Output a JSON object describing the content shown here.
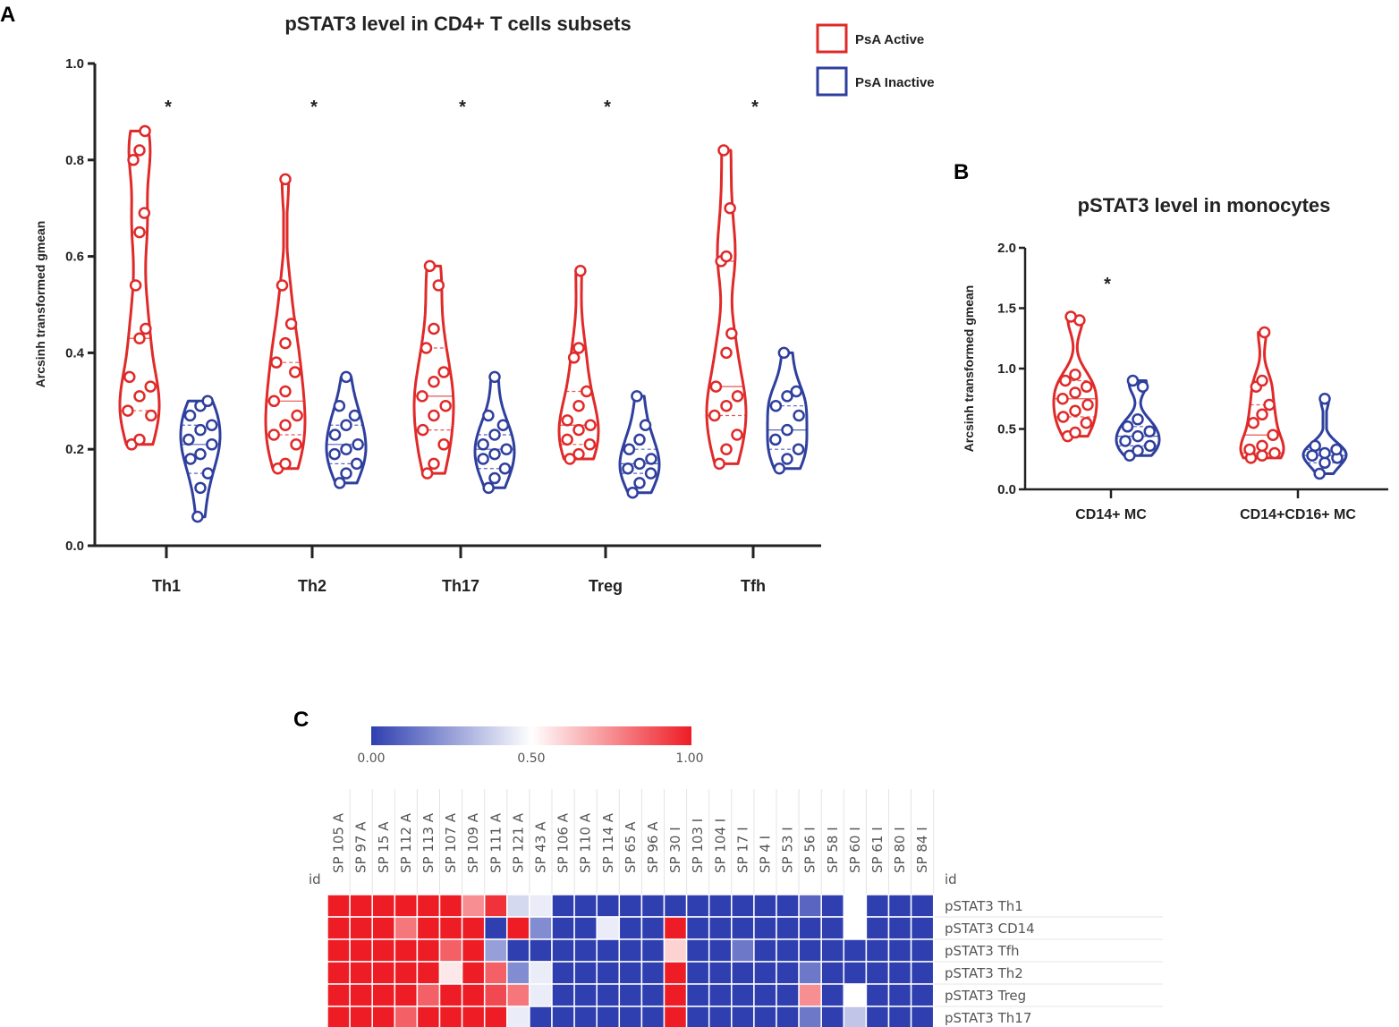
{
  "panel_labels": {
    "a": "A",
    "b": "B",
    "c": "C"
  },
  "colors": {
    "active": "#e02a2a",
    "inactive": "#2f3f9e",
    "axis": "#222222"
  },
  "legend": {
    "active": "PsA Active",
    "inactive": "PsA Inactive"
  },
  "chart_data": [
    {
      "type": "violin",
      "title": "pSTAT3 level in CD4+ T cells subsets",
      "ylabel": "Arcsinh transformed gmean",
      "ylim": [
        0,
        1.0
      ],
      "yticks": [
        "0.0",
        "0.2",
        "0.4",
        "0.6",
        "0.8",
        "1.0"
      ],
      "categories": [
        "Th1",
        "Th2",
        "Th17",
        "Treg",
        "Tfh"
      ],
      "significance": [
        "*",
        "*",
        "*",
        "*",
        "*"
      ],
      "series": [
        {
          "name": "PsA Active",
          "values": [
            [
              0.21,
              0.22,
              0.27,
              0.28,
              0.31,
              0.33,
              0.35,
              0.43,
              0.45,
              0.54,
              0.65,
              0.69,
              0.8,
              0.82,
              0.86
            ],
            [
              0.16,
              0.17,
              0.21,
              0.23,
              0.25,
              0.27,
              0.3,
              0.32,
              0.36,
              0.38,
              0.42,
              0.46,
              0.54,
              0.76
            ],
            [
              0.15,
              0.17,
              0.21,
              0.24,
              0.27,
              0.29,
              0.31,
              0.34,
              0.36,
              0.41,
              0.45,
              0.54,
              0.58
            ],
            [
              0.18,
              0.19,
              0.21,
              0.22,
              0.24,
              0.25,
              0.26,
              0.29,
              0.32,
              0.39,
              0.41,
              0.57
            ],
            [
              0.17,
              0.2,
              0.23,
              0.27,
              0.29,
              0.31,
              0.33,
              0.4,
              0.44,
              0.59,
              0.6,
              0.7,
              0.82
            ]
          ]
        },
        {
          "name": "PsA Inactive",
          "values": [
            [
              0.06,
              0.12,
              0.15,
              0.18,
              0.19,
              0.21,
              0.22,
              0.24,
              0.25,
              0.27,
              0.29,
              0.3
            ],
            [
              0.13,
              0.15,
              0.17,
              0.19,
              0.2,
              0.21,
              0.23,
              0.25,
              0.27,
              0.29,
              0.35
            ],
            [
              0.12,
              0.14,
              0.16,
              0.18,
              0.19,
              0.2,
              0.21,
              0.23,
              0.25,
              0.27,
              0.35
            ],
            [
              0.11,
              0.13,
              0.15,
              0.16,
              0.17,
              0.18,
              0.2,
              0.22,
              0.25,
              0.31
            ],
            [
              0.16,
              0.18,
              0.2,
              0.22,
              0.24,
              0.27,
              0.29,
              0.31,
              0.32,
              0.4
            ]
          ]
        }
      ]
    },
    {
      "type": "violin",
      "title": "pSTAT3 level in monocytes",
      "ylabel": "Arcsinh transformed gmean",
      "ylim": [
        0,
        2.0
      ],
      "yticks": [
        "0.0",
        "0.5",
        "1.0",
        "1.5",
        "2.0"
      ],
      "categories": [
        "CD14+ MC",
        "CD14+CD16+ MC"
      ],
      "significance": [
        "*",
        ""
      ],
      "series": [
        {
          "name": "PsA Active",
          "values": [
            [
              0.44,
              0.47,
              0.55,
              0.6,
              0.65,
              0.7,
              0.75,
              0.8,
              0.85,
              0.9,
              0.95,
              1.4,
              1.43
            ],
            [
              0.26,
              0.28,
              0.3,
              0.33,
              0.36,
              0.45,
              0.55,
              0.62,
              0.7,
              0.85,
              0.9,
              1.3
            ]
          ]
        },
        {
          "name": "PsA Inactive",
          "values": [
            [
              0.28,
              0.32,
              0.36,
              0.4,
              0.44,
              0.48,
              0.52,
              0.58,
              0.85,
              0.9
            ],
            [
              0.13,
              0.22,
              0.26,
              0.28,
              0.3,
              0.33,
              0.36,
              0.75
            ]
          ]
        }
      ]
    },
    {
      "type": "heatmap",
      "colorbar": {
        "min": 0.0,
        "max": 1.0,
        "ticks": [
          "0.00",
          "0.50",
          "1.00"
        ]
      },
      "id_label": "id",
      "columns": [
        "SP 105 A",
        "SP 97 A",
        "SP 15 A",
        "SP 112 A",
        "SP 113 A",
        "SP 107 A",
        "SP 109 A",
        "SP 111 A",
        "SP 121 A",
        "SP 43 A",
        "SP 106 A",
        "SP 110 A",
        "SP 114 A",
        "SP 65 A",
        "SP 96 A",
        "SP 30 I",
        "SP 103 I",
        "SP 104 I",
        "SP 17 I",
        "SP 4 I",
        "SP 53 I",
        "SP 56 I",
        "SP 58 I",
        "SP 60 I",
        "SP 61 I",
        "SP 80 I",
        "SP 84 I"
      ],
      "rows": [
        "pSTAT3 Th1",
        "pSTAT3 CD14",
        "pSTAT3 Tfh",
        "pSTAT3 Th2",
        "pSTAT3 Treg",
        "pSTAT3 Th17"
      ],
      "values": [
        [
          1.0,
          1.0,
          1.0,
          1.0,
          1.0,
          1.0,
          0.75,
          0.95,
          0.4,
          0.45,
          0.0,
          0.0,
          0.0,
          0.0,
          0.0,
          0.0,
          0.0,
          0.0,
          0.0,
          0.0,
          0.0,
          0.1,
          0.0,
          0.5,
          0.0,
          0.0,
          0.0
        ],
        [
          1.0,
          1.0,
          1.0,
          0.8,
          1.0,
          1.0,
          1.0,
          0.0,
          1.0,
          0.2,
          0.0,
          0.0,
          0.45,
          0.0,
          0.0,
          1.0,
          0.0,
          0.0,
          0.0,
          0.0,
          0.0,
          0.0,
          0.0,
          0.5,
          0.0,
          0.0,
          0.0
        ],
        [
          1.0,
          1.0,
          1.0,
          1.0,
          1.0,
          0.85,
          1.0,
          0.25,
          0.0,
          0.0,
          0.0,
          0.0,
          0.0,
          0.0,
          0.0,
          0.6,
          0.0,
          0.0,
          0.15,
          0.0,
          0.0,
          0.0,
          0.0,
          0.0,
          0.0,
          0.0,
          0.0
        ],
        [
          1.0,
          1.0,
          1.0,
          1.0,
          1.0,
          0.55,
          1.0,
          0.85,
          0.2,
          0.45,
          0.0,
          0.0,
          0.0,
          0.0,
          0.0,
          1.0,
          0.0,
          0.0,
          0.0,
          0.0,
          0.0,
          0.15,
          0.0,
          0.0,
          0.0,
          0.0,
          0.0
        ],
        [
          1.0,
          1.0,
          1.0,
          1.0,
          0.85,
          1.0,
          1.0,
          0.9,
          0.8,
          0.45,
          0.0,
          0.0,
          0.0,
          0.0,
          0.0,
          1.0,
          0.0,
          0.0,
          0.0,
          0.0,
          0.0,
          0.75,
          0.0,
          0.5,
          0.0,
          0.0,
          0.0
        ],
        [
          1.0,
          1.0,
          1.0,
          0.85,
          1.0,
          1.0,
          1.0,
          1.0,
          0.45,
          0.0,
          0.0,
          0.0,
          0.0,
          0.0,
          0.0,
          1.0,
          0.0,
          0.0,
          0.0,
          0.0,
          0.0,
          0.15,
          0.0,
          0.35,
          0.0,
          0.0,
          0.0
        ]
      ]
    }
  ]
}
